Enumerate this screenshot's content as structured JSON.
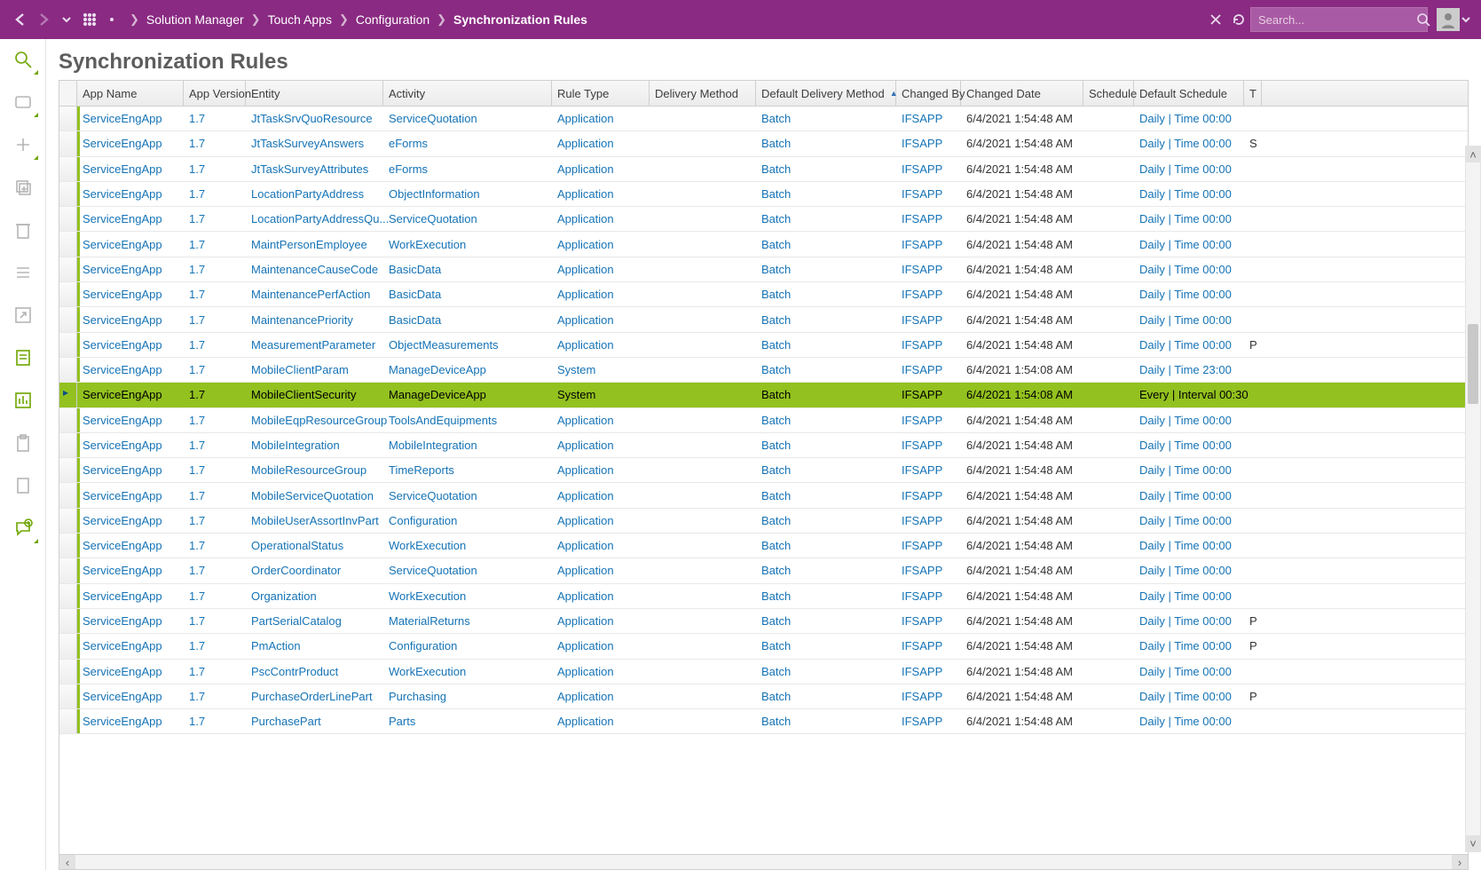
{
  "colors": {
    "brand": "#8a2a82",
    "green": "#93c11f",
    "link": "#1573b6"
  },
  "topbar": {
    "breadcrumb": [
      "Solution Manager",
      "Touch Apps",
      "Configuration",
      "Synchronization Rules"
    ],
    "search_placeholder": "Search..."
  },
  "page": {
    "title": "Synchronization Rules"
  },
  "grid": {
    "columns": [
      {
        "key": "marker",
        "label": "",
        "cls": "c-marker"
      },
      {
        "key": "app",
        "label": "App Name",
        "cls": "c-app"
      },
      {
        "key": "ver",
        "label": "App Version",
        "cls": "c-ver"
      },
      {
        "key": "ent",
        "label": "Entity",
        "cls": "c-ent"
      },
      {
        "key": "act",
        "label": "Activity",
        "cls": "c-act"
      },
      {
        "key": "rtype",
        "label": "Rule Type",
        "cls": "c-rtype"
      },
      {
        "key": "dmeth",
        "label": "Delivery Method",
        "cls": "c-dmeth"
      },
      {
        "key": "ddmeth",
        "label": "Default Delivery Method",
        "cls": "c-ddmeth",
        "sort": "asc"
      },
      {
        "key": "chby",
        "label": "Changed By",
        "cls": "c-chby"
      },
      {
        "key": "chdt",
        "label": "Changed Date",
        "cls": "c-chdt"
      },
      {
        "key": "sched",
        "label": "Schedule",
        "cls": "c-sched"
      },
      {
        "key": "dsched",
        "label": "Default Schedule",
        "cls": "c-dsched"
      },
      {
        "key": "t",
        "label": "T",
        "cls": "c-t"
      }
    ],
    "link_cols": [
      "app",
      "ver",
      "ent",
      "act",
      "rtype",
      "ddmeth",
      "chby",
      "dsched"
    ],
    "plain_cols": [
      "chdt",
      "sched",
      "t"
    ],
    "selected_index": 11,
    "rows": [
      {
        "app": "ServiceEngApp",
        "ver": "1.7",
        "ent": "JtTaskSrvQuoResource",
        "act": "ServiceQuotation",
        "rtype": "Application",
        "dmeth": "",
        "ddmeth": "Batch",
        "chby": "IFSAPP",
        "chdt": "6/4/2021 1:54:48 AM",
        "sched": "",
        "dsched": "Daily | Time 00:00",
        "t": ""
      },
      {
        "app": "ServiceEngApp",
        "ver": "1.7",
        "ent": "JtTaskSurveyAnswers",
        "act": "eForms",
        "rtype": "Application",
        "dmeth": "",
        "ddmeth": "Batch",
        "chby": "IFSAPP",
        "chdt": "6/4/2021 1:54:48 AM",
        "sched": "",
        "dsched": "Daily | Time 00:00",
        "t": "S"
      },
      {
        "app": "ServiceEngApp",
        "ver": "1.7",
        "ent": "JtTaskSurveyAttributes",
        "act": "eForms",
        "rtype": "Application",
        "dmeth": "",
        "ddmeth": "Batch",
        "chby": "IFSAPP",
        "chdt": "6/4/2021 1:54:48 AM",
        "sched": "",
        "dsched": "Daily | Time 00:00",
        "t": ""
      },
      {
        "app": "ServiceEngApp",
        "ver": "1.7",
        "ent": "LocationPartyAddress",
        "act": "ObjectInformation",
        "rtype": "Application",
        "dmeth": "",
        "ddmeth": "Batch",
        "chby": "IFSAPP",
        "chdt": "6/4/2021 1:54:48 AM",
        "sched": "",
        "dsched": "Daily | Time 00:00",
        "t": ""
      },
      {
        "app": "ServiceEngApp",
        "ver": "1.7",
        "ent": "LocationPartyAddressQu...",
        "act": "ServiceQuotation",
        "rtype": "Application",
        "dmeth": "",
        "ddmeth": "Batch",
        "chby": "IFSAPP",
        "chdt": "6/4/2021 1:54:48 AM",
        "sched": "",
        "dsched": "Daily | Time 00:00",
        "t": ""
      },
      {
        "app": "ServiceEngApp",
        "ver": "1.7",
        "ent": "MaintPersonEmployee",
        "act": "WorkExecution",
        "rtype": "Application",
        "dmeth": "",
        "ddmeth": "Batch",
        "chby": "IFSAPP",
        "chdt": "6/4/2021 1:54:48 AM",
        "sched": "",
        "dsched": "Daily | Time 00:00",
        "t": ""
      },
      {
        "app": "ServiceEngApp",
        "ver": "1.7",
        "ent": "MaintenanceCauseCode",
        "act": "BasicData",
        "rtype": "Application",
        "dmeth": "",
        "ddmeth": "Batch",
        "chby": "IFSAPP",
        "chdt": "6/4/2021 1:54:48 AM",
        "sched": "",
        "dsched": "Daily | Time 00:00",
        "t": ""
      },
      {
        "app": "ServiceEngApp",
        "ver": "1.7",
        "ent": "MaintenancePerfAction",
        "act": "BasicData",
        "rtype": "Application",
        "dmeth": "",
        "ddmeth": "Batch",
        "chby": "IFSAPP",
        "chdt": "6/4/2021 1:54:48 AM",
        "sched": "",
        "dsched": "Daily | Time 00:00",
        "t": ""
      },
      {
        "app": "ServiceEngApp",
        "ver": "1.7",
        "ent": "MaintenancePriority",
        "act": "BasicData",
        "rtype": "Application",
        "dmeth": "",
        "ddmeth": "Batch",
        "chby": "IFSAPP",
        "chdt": "6/4/2021 1:54:48 AM",
        "sched": "",
        "dsched": "Daily | Time 00:00",
        "t": ""
      },
      {
        "app": "ServiceEngApp",
        "ver": "1.7",
        "ent": "MeasurementParameter",
        "act": "ObjectMeasurements",
        "rtype": "Application",
        "dmeth": "",
        "ddmeth": "Batch",
        "chby": "IFSAPP",
        "chdt": "6/4/2021 1:54:48 AM",
        "sched": "",
        "dsched": "Daily | Time 00:00",
        "t": "P"
      },
      {
        "app": "ServiceEngApp",
        "ver": "1.7",
        "ent": "MobileClientParam",
        "act": "ManageDeviceApp",
        "rtype": "System",
        "dmeth": "",
        "ddmeth": "Batch",
        "chby": "IFSAPP",
        "chdt": "6/4/2021 1:54:08 AM",
        "sched": "",
        "dsched": "Daily | Time 23:00",
        "t": ""
      },
      {
        "app": "ServiceEngApp",
        "ver": "1.7",
        "ent": "MobileClientSecurity",
        "act": "ManageDeviceApp",
        "rtype": "System",
        "dmeth": "",
        "ddmeth": "Batch",
        "chby": "IFSAPP",
        "chdt": "6/4/2021 1:54:08 AM",
        "sched": "",
        "dsched": "Every | Interval 00:30",
        "t": ""
      },
      {
        "app": "ServiceEngApp",
        "ver": "1.7",
        "ent": "MobileEqpResourceGroup",
        "act": "ToolsAndEquipments",
        "rtype": "Application",
        "dmeth": "",
        "ddmeth": "Batch",
        "chby": "IFSAPP",
        "chdt": "6/4/2021 1:54:48 AM",
        "sched": "",
        "dsched": "Daily | Time 00:00",
        "t": ""
      },
      {
        "app": "ServiceEngApp",
        "ver": "1.7",
        "ent": "MobileIntegration",
        "act": "MobileIntegration",
        "rtype": "Application",
        "dmeth": "",
        "ddmeth": "Batch",
        "chby": "IFSAPP",
        "chdt": "6/4/2021 1:54:48 AM",
        "sched": "",
        "dsched": "Daily | Time 00:00",
        "t": ""
      },
      {
        "app": "ServiceEngApp",
        "ver": "1.7",
        "ent": "MobileResourceGroup",
        "act": "TimeReports",
        "rtype": "Application",
        "dmeth": "",
        "ddmeth": "Batch",
        "chby": "IFSAPP",
        "chdt": "6/4/2021 1:54:48 AM",
        "sched": "",
        "dsched": "Daily | Time 00:00",
        "t": ""
      },
      {
        "app": "ServiceEngApp",
        "ver": "1.7",
        "ent": "MobileServiceQuotation",
        "act": "ServiceQuotation",
        "rtype": "Application",
        "dmeth": "",
        "ddmeth": "Batch",
        "chby": "IFSAPP",
        "chdt": "6/4/2021 1:54:48 AM",
        "sched": "",
        "dsched": "Daily | Time 00:00",
        "t": ""
      },
      {
        "app": "ServiceEngApp",
        "ver": "1.7",
        "ent": "MobileUserAssortInvPart",
        "act": "Configuration",
        "rtype": "Application",
        "dmeth": "",
        "ddmeth": "Batch",
        "chby": "IFSAPP",
        "chdt": "6/4/2021 1:54:48 AM",
        "sched": "",
        "dsched": "Daily | Time 00:00",
        "t": ""
      },
      {
        "app": "ServiceEngApp",
        "ver": "1.7",
        "ent": "OperationalStatus",
        "act": "WorkExecution",
        "rtype": "Application",
        "dmeth": "",
        "ddmeth": "Batch",
        "chby": "IFSAPP",
        "chdt": "6/4/2021 1:54:48 AM",
        "sched": "",
        "dsched": "Daily | Time 00:00",
        "t": ""
      },
      {
        "app": "ServiceEngApp",
        "ver": "1.7",
        "ent": "OrderCoordinator",
        "act": "ServiceQuotation",
        "rtype": "Application",
        "dmeth": "",
        "ddmeth": "Batch",
        "chby": "IFSAPP",
        "chdt": "6/4/2021 1:54:48 AM",
        "sched": "",
        "dsched": "Daily | Time 00:00",
        "t": ""
      },
      {
        "app": "ServiceEngApp",
        "ver": "1.7",
        "ent": "Organization",
        "act": "WorkExecution",
        "rtype": "Application",
        "dmeth": "",
        "ddmeth": "Batch",
        "chby": "IFSAPP",
        "chdt": "6/4/2021 1:54:48 AM",
        "sched": "",
        "dsched": "Daily | Time 00:00",
        "t": ""
      },
      {
        "app": "ServiceEngApp",
        "ver": "1.7",
        "ent": "PartSerialCatalog",
        "act": "MaterialReturns",
        "rtype": "Application",
        "dmeth": "",
        "ddmeth": "Batch",
        "chby": "IFSAPP",
        "chdt": "6/4/2021 1:54:48 AM",
        "sched": "",
        "dsched": "Daily | Time 00:00",
        "t": "P"
      },
      {
        "app": "ServiceEngApp",
        "ver": "1.7",
        "ent": "PmAction",
        "act": "Configuration",
        "rtype": "Application",
        "dmeth": "",
        "ddmeth": "Batch",
        "chby": "IFSAPP",
        "chdt": "6/4/2021 1:54:48 AM",
        "sched": "",
        "dsched": "Daily | Time 00:00",
        "t": "P"
      },
      {
        "app": "ServiceEngApp",
        "ver": "1.7",
        "ent": "PscContrProduct",
        "act": "WorkExecution",
        "rtype": "Application",
        "dmeth": "",
        "ddmeth": "Batch",
        "chby": "IFSAPP",
        "chdt": "6/4/2021 1:54:48 AM",
        "sched": "",
        "dsched": "Daily | Time 00:00",
        "t": ""
      },
      {
        "app": "ServiceEngApp",
        "ver": "1.7",
        "ent": "PurchaseOrderLinePart",
        "act": "Purchasing",
        "rtype": "Application",
        "dmeth": "",
        "ddmeth": "Batch",
        "chby": "IFSAPP",
        "chdt": "6/4/2021 1:54:48 AM",
        "sched": "",
        "dsched": "Daily | Time 00:00",
        "t": "P"
      },
      {
        "app": "ServiceEngApp",
        "ver": "1.7",
        "ent": "PurchasePart",
        "act": "Parts",
        "rtype": "Application",
        "dmeth": "",
        "ddmeth": "Batch",
        "chby": "IFSAPP",
        "chdt": "6/4/2021 1:54:48 AM",
        "sched": "",
        "dsched": "Daily | Time 00:00",
        "t": ""
      }
    ]
  }
}
